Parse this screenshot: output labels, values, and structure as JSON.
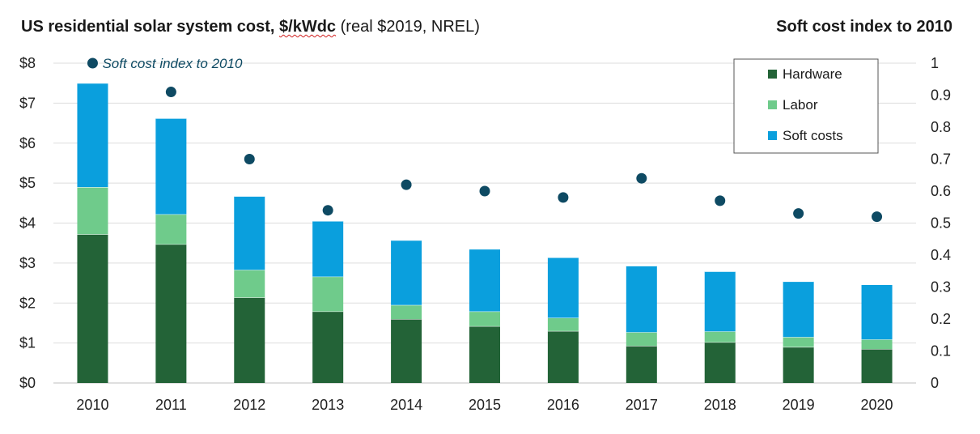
{
  "title": {
    "bold": "US residential solar system cost,",
    "unit": "$/kWdc",
    "rest": "(real $2019, NREL)"
  },
  "right_title": "Soft cost index to 2010",
  "annotation": "Soft cost index to 2010",
  "colors": {
    "hardware": "#236337",
    "labor": "#6fcb8b",
    "soft_costs": "#0a9fdd",
    "index_dot": "#0e4a63",
    "grid": "#dddddd"
  },
  "chart_data": {
    "type": "bar",
    "stacked": true,
    "categories": [
      "2010",
      "2011",
      "2012",
      "2013",
      "2014",
      "2015",
      "2016",
      "2017",
      "2018",
      "2019",
      "2020"
    ],
    "series": [
      {
        "name": "Hardware",
        "values": [
          3.72,
          3.47,
          2.14,
          1.79,
          1.6,
          1.42,
          1.3,
          0.93,
          1.02,
          0.9,
          0.85
        ]
      },
      {
        "name": "Labor",
        "values": [
          1.18,
          0.75,
          0.69,
          0.87,
          0.35,
          0.37,
          0.33,
          0.34,
          0.27,
          0.25,
          0.24
        ]
      },
      {
        "name": "Soft costs",
        "values": [
          2.6,
          2.4,
          1.84,
          1.39,
          1.62,
          1.56,
          1.51,
          1.66,
          1.5,
          1.39,
          1.37
        ]
      }
    ],
    "index_series": {
      "name": "Soft cost index to 2010",
      "values": [
        1.0,
        0.91,
        0.7,
        0.54,
        0.62,
        0.6,
        0.58,
        0.64,
        0.57,
        0.53,
        0.52
      ]
    },
    "ylim": [
      0,
      8
    ],
    "y_ticks": [
      "$0",
      "$1",
      "$2",
      "$3",
      "$4",
      "$5",
      "$6",
      "$7",
      "$8"
    ],
    "y2lim": [
      0,
      1
    ],
    "y2_ticks": [
      "0",
      "0.1",
      "0.2",
      "0.3",
      "0.4",
      "0.5",
      "0.6",
      "0.7",
      "0.8",
      "0.9",
      "1"
    ],
    "legend": [
      "Hardware",
      "Labor",
      "Soft costs"
    ],
    "legend_position": "top-right",
    "grid": true
  }
}
